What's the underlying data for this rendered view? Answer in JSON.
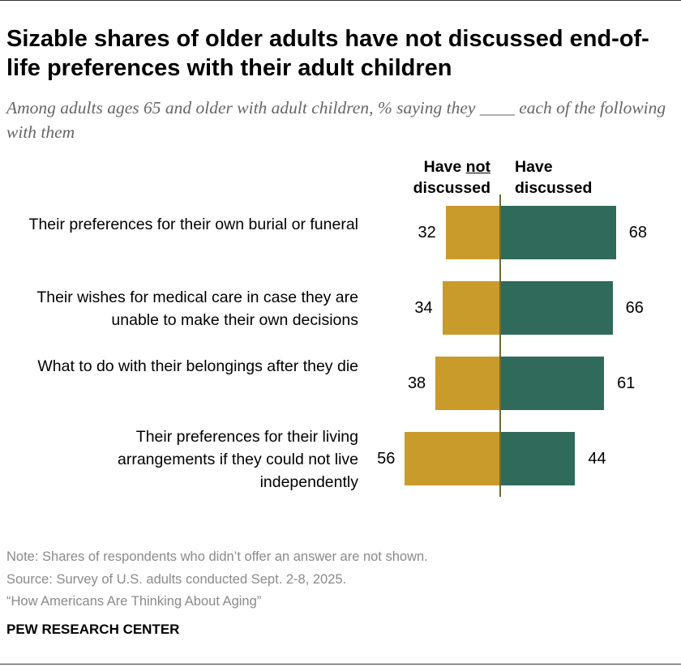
{
  "title": "Sizable shares of older adults have not discussed end-of-life preferences with their adult children",
  "subtitle": "Among adults ages 65 and older with adult children, % saying they ____ each of the following with them",
  "chart_data": {
    "type": "bar",
    "orientation": "horizontal-diverging",
    "categories": [
      "Their preferences for their own burial or funeral",
      "Their wishes for medical care in case they are unable to make their own decisions",
      "What to do with their belongings after they die",
      "Their preferences for their living arrangements if they could not live independently"
    ],
    "series": [
      {
        "name": "Have not discussed",
        "name_parts": [
          "Have ",
          "not",
          " discussed"
        ],
        "color": "#C99B2B",
        "values": [
          32,
          34,
          38,
          56
        ]
      },
      {
        "name": "Have discussed",
        "color": "#2F6A5B",
        "values": [
          68,
          66,
          61,
          44
        ]
      }
    ],
    "xlim": [
      0,
      100
    ],
    "grid": false
  },
  "footer": {
    "note": "Note: Shares of respondents who didn’t offer an answer are not shown.",
    "source": "Source: Survey of U.S. adults conducted Sept. 2-8, 2025.",
    "report": "“How Americans Are Thinking About Aging”",
    "brand": "PEW RESEARCH CENTER"
  }
}
